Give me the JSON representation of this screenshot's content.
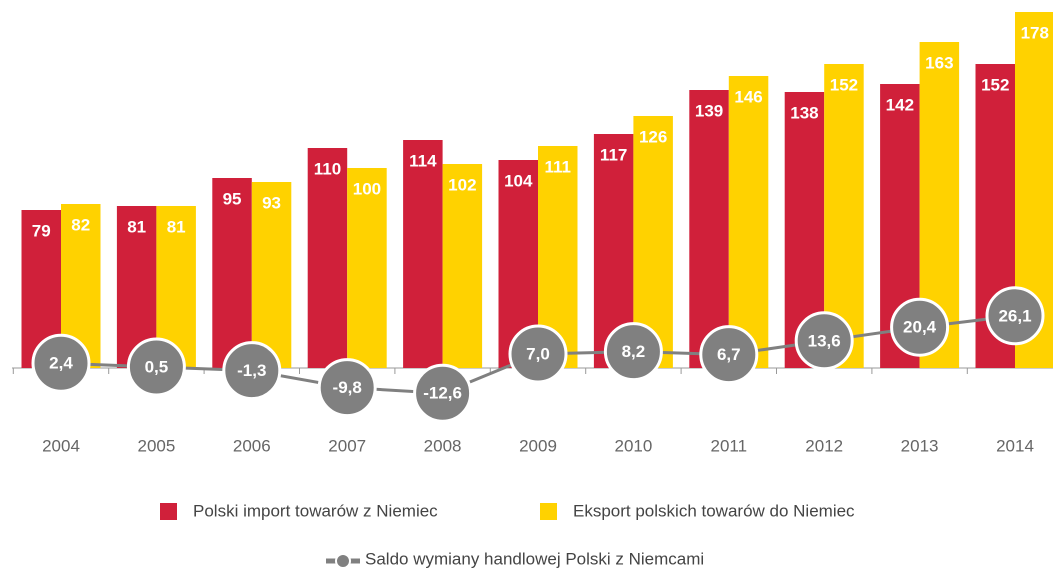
{
  "chart_data": {
    "type": "bar",
    "categories": [
      "2004",
      "2005",
      "2006",
      "2007",
      "2008",
      "2009",
      "2010",
      "2011",
      "2012",
      "2013",
      "2014"
    ],
    "series": [
      {
        "name": "Polski import towarów z Niemiec",
        "color": "#d0203a",
        "values": [
          79,
          81,
          95,
          110,
          114,
          104,
          117,
          139,
          138,
          142,
          152
        ]
      },
      {
        "name": "Eksport polskich towarów do Niemiec",
        "color": "#ffd200",
        "values": [
          82,
          81,
          93,
          100,
          102,
          111,
          126,
          146,
          152,
          163,
          178
        ]
      },
      {
        "name": "Saldo wymiany handlowej Polski z Niemcami",
        "type": "line",
        "color": "#808080",
        "values": [
          2.4,
          0.5,
          -1.3,
          -9.8,
          -12.6,
          7.0,
          8.2,
          6.7,
          13.6,
          20.4,
          26.1
        ],
        "value_labels": [
          "2,4",
          "0,5",
          "-1,3",
          "-9,8",
          "-12,6",
          "7,0",
          "8,2",
          "6,7",
          "13,6",
          "20,4",
          "26,1"
        ]
      }
    ]
  }
}
